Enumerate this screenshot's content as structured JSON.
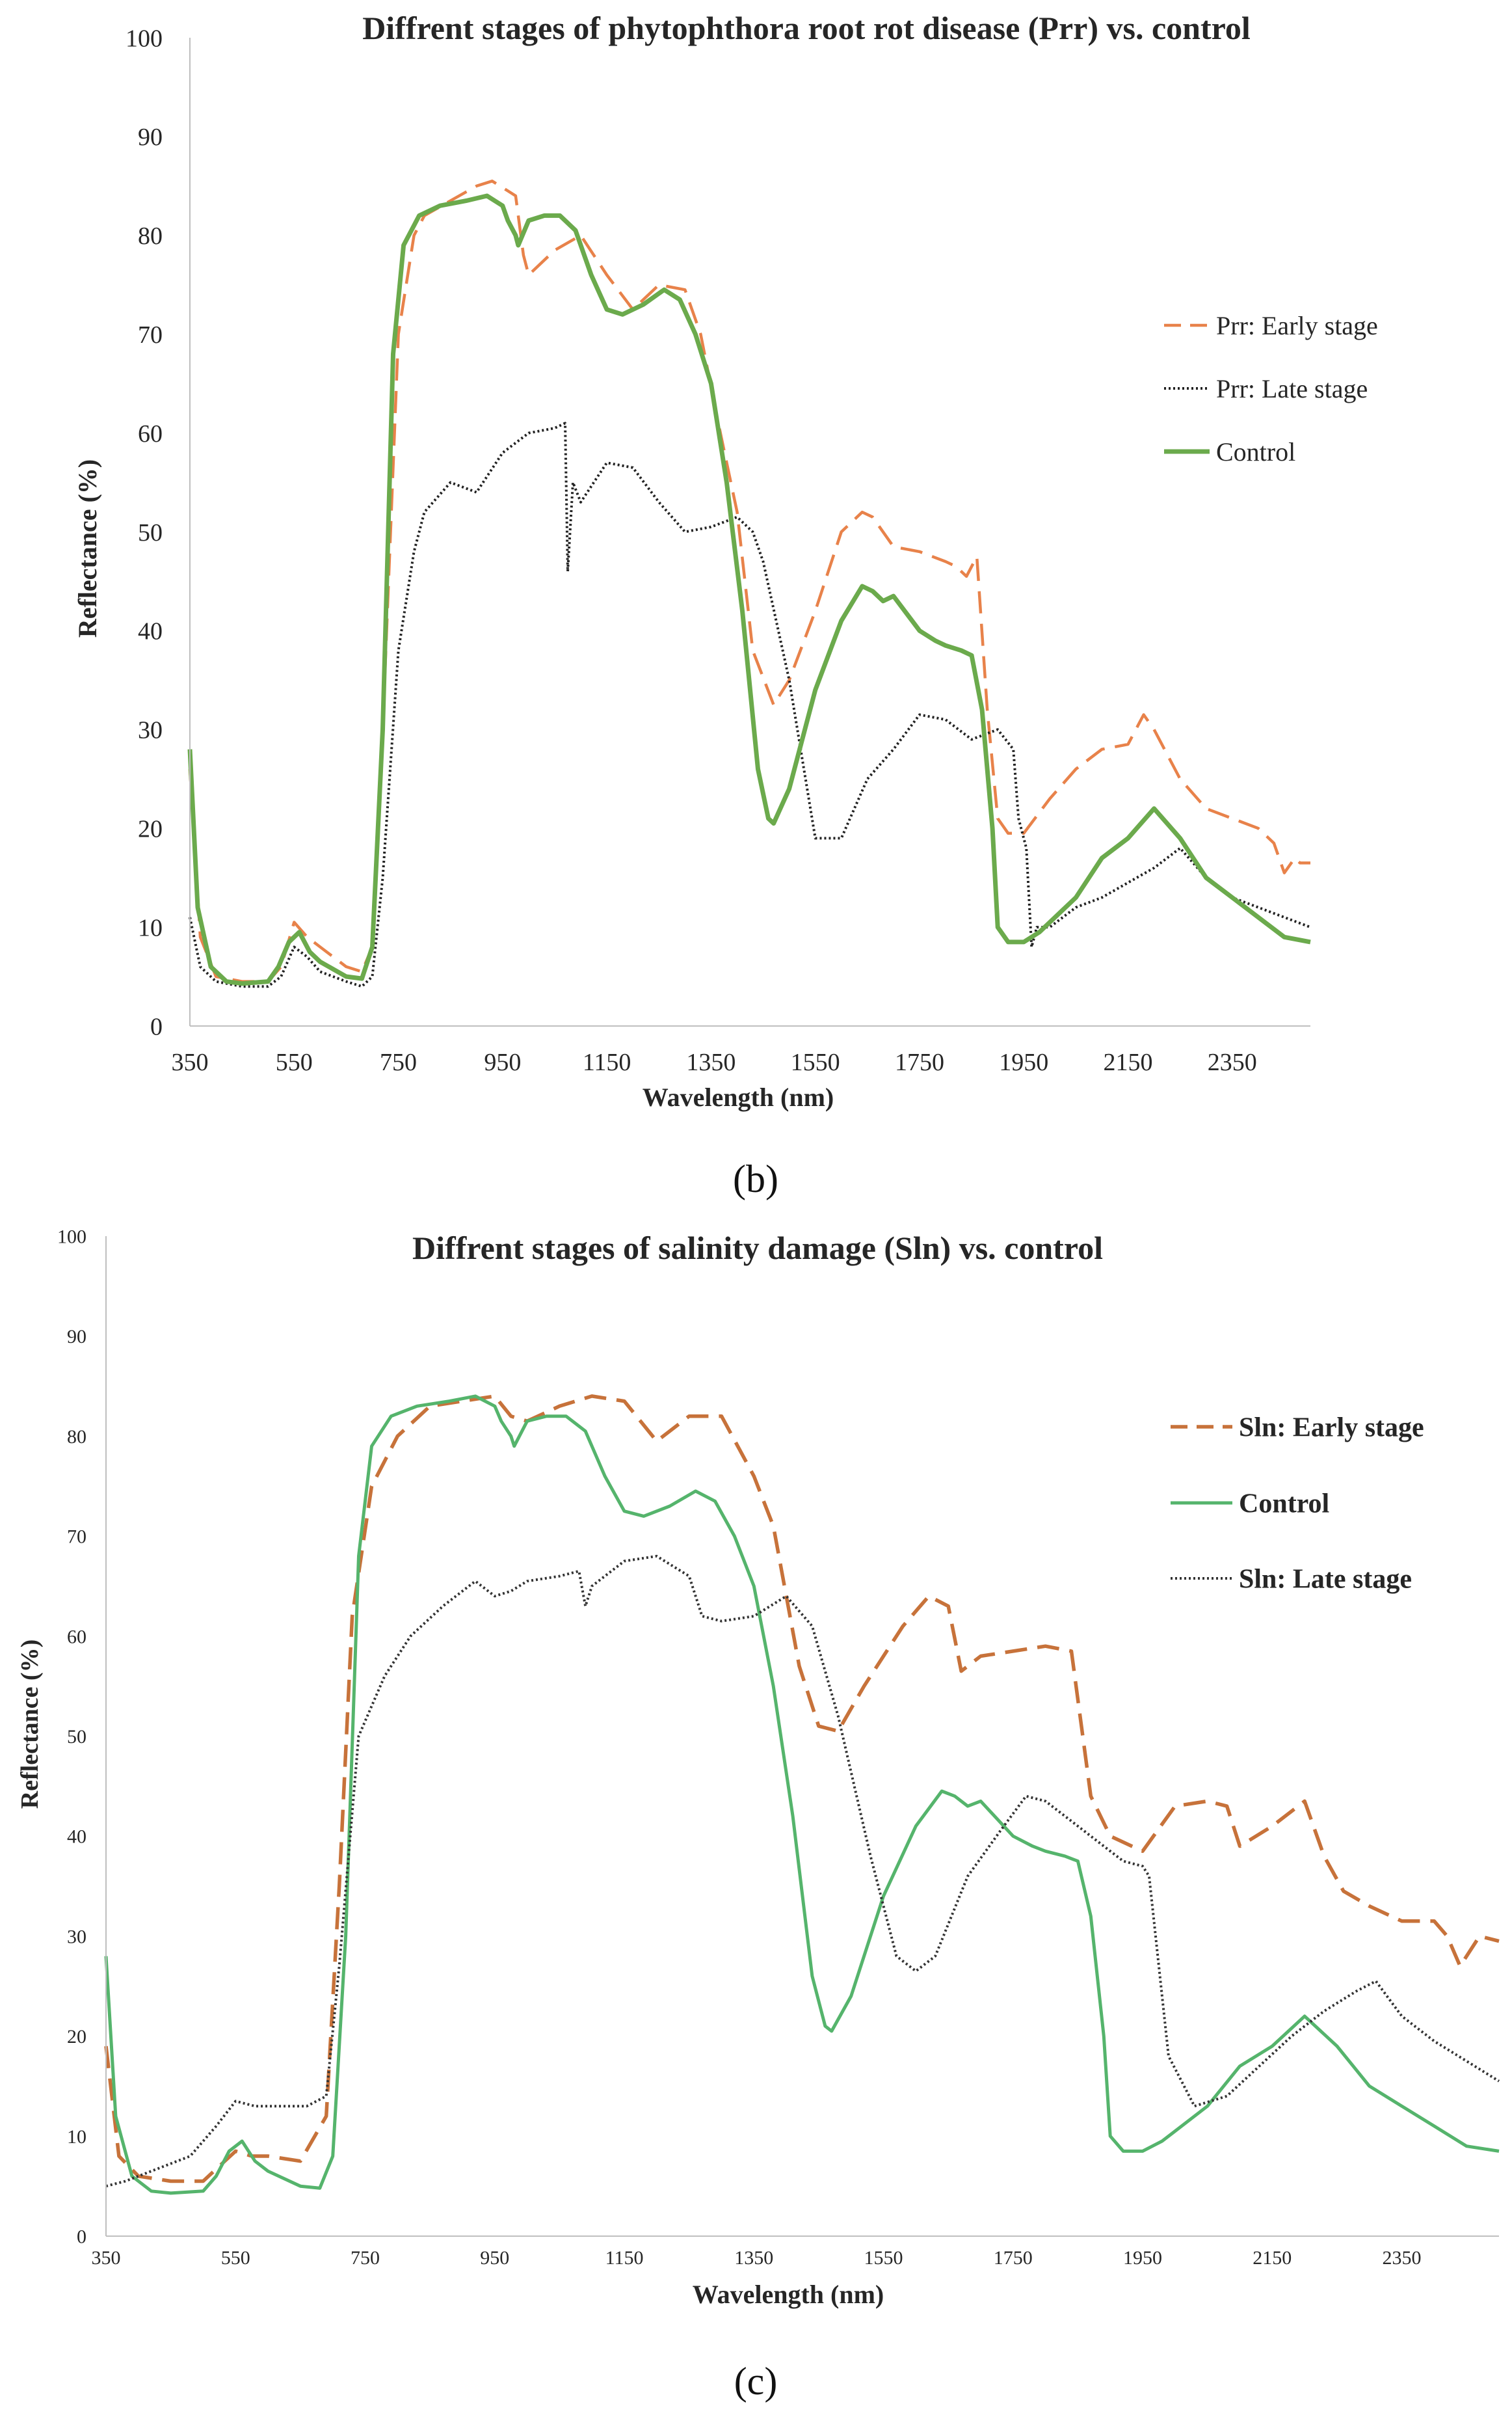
{
  "chart_data": [
    {
      "type": "line",
      "title": "Diffrent stages of phytophthora root rot disease (Prr) vs. control",
      "xlabel": "Wavelength  (nm)",
      "ylabel": "Reflectance (%)",
      "xlim": [
        350,
        2500
      ],
      "ylim": [
        0,
        100
      ],
      "xticks": [
        350,
        550,
        750,
        950,
        1150,
        1350,
        1550,
        1750,
        1950,
        2150,
        2350
      ],
      "yticks": [
        0,
        10,
        20,
        30,
        40,
        50,
        60,
        70,
        80,
        90,
        100
      ],
      "grid": false,
      "legend_position": "right",
      "panel_label": "(b)",
      "series": [
        {
          "name": "Prr: Early stage",
          "color": "#E8824A",
          "dash": "dashed",
          "x": [
            350,
            370,
            400,
            450,
            500,
            525,
            550,
            575,
            600,
            650,
            680,
            700,
            720,
            750,
            780,
            800,
            850,
            900,
            930,
            960,
            975,
            990,
            1000,
            1050,
            1100,
            1150,
            1200,
            1250,
            1300,
            1330,
            1360,
            1380,
            1400,
            1430,
            1470,
            1500,
            1550,
            1600,
            1640,
            1660,
            1700,
            1750,
            1800,
            1820,
            1840,
            1860,
            1880,
            1900,
            1920,
            1950,
            2000,
            2050,
            2100,
            2150,
            2180,
            2200,
            2250,
            2300,
            2350,
            2400,
            2430,
            2450,
            2470,
            2480,
            2500
          ],
          "y": [
            26,
            9,
            5,
            4.5,
            4.5,
            6,
            10.5,
            9,
            8,
            6,
            5.5,
            8,
            30,
            70,
            80,
            82,
            83.5,
            85,
            85.5,
            84.5,
            84,
            78,
            76,
            78.5,
            80,
            76,
            72.5,
            75,
            74.5,
            70,
            62,
            57,
            52,
            38,
            32.5,
            35,
            42,
            50,
            52,
            51.5,
            48.5,
            48,
            47,
            46.5,
            45.5,
            47.5,
            32,
            21,
            19.5,
            19.5,
            23,
            26,
            28,
            28.5,
            31.5,
            30,
            25,
            22,
            21,
            20,
            18.5,
            15.5,
            17,
            16.5,
            16.5
          ]
        },
        {
          "name": "Prr: Late stage",
          "color": "#222222",
          "dash": "dotted",
          "x": [
            350,
            370,
            400,
            450,
            500,
            525,
            550,
            575,
            600,
            650,
            680,
            700,
            720,
            750,
            780,
            800,
            850,
            900,
            950,
            1000,
            1050,
            1070,
            1075,
            1085,
            1100,
            1150,
            1200,
            1250,
            1300,
            1350,
            1400,
            1430,
            1450,
            1500,
            1550,
            1600,
            1650,
            1700,
            1750,
            1800,
            1850,
            1900,
            1930,
            1940,
            1955,
            1965,
            1975,
            2000,
            2050,
            2100,
            2150,
            2200,
            2250,
            2300,
            2350,
            2400,
            2450,
            2500
          ],
          "y": [
            11,
            6,
            4.5,
            4,
            4,
            5,
            8,
            7,
            5.5,
            4.5,
            4,
            5,
            15,
            38,
            48,
            52,
            55,
            54,
            58,
            60,
            60.5,
            61,
            46,
            55,
            53,
            57,
            56.5,
            53,
            50,
            50.5,
            51.5,
            50,
            47,
            35,
            19,
            19,
            25,
            28,
            31.5,
            31,
            29,
            30,
            28,
            21,
            18,
            8,
            10,
            10,
            12,
            13,
            14.5,
            16,
            18,
            15,
            13,
            12,
            11,
            10
          ]
        },
        {
          "name": "Control",
          "color": "#6BAA4C",
          "dash": "solid",
          "x": [
            350,
            365,
            390,
            420,
            450,
            500,
            520,
            540,
            560,
            580,
            600,
            650,
            680,
            700,
            720,
            740,
            760,
            790,
            830,
            880,
            920,
            950,
            960,
            975,
            980,
            1000,
            1030,
            1060,
            1090,
            1120,
            1150,
            1180,
            1220,
            1260,
            1290,
            1320,
            1350,
            1380,
            1410,
            1440,
            1460,
            1470,
            1500,
            1550,
            1600,
            1640,
            1660,
            1680,
            1700,
            1750,
            1780,
            1800,
            1830,
            1850,
            1870,
            1890,
            1900,
            1920,
            1950,
            1980,
            2000,
            2050,
            2100,
            2150,
            2200,
            2250,
            2300,
            2350,
            2400,
            2450,
            2500
          ],
          "y": [
            28,
            12,
            6,
            4.5,
            4.3,
            4.5,
            6,
            8.5,
            9.5,
            7.5,
            6.5,
            5,
            4.8,
            8,
            30,
            68,
            79,
            82,
            83,
            83.5,
            84,
            83,
            81.5,
            80,
            79,
            81.5,
            82,
            82,
            80.5,
            76,
            72.5,
            72,
            73,
            74.5,
            73.5,
            70,
            65,
            55,
            42,
            26,
            21,
            20.5,
            24,
            34,
            41,
            44.5,
            44,
            43,
            43.5,
            40,
            39,
            38.5,
            38,
            37.5,
            32,
            20,
            10,
            8.5,
            8.5,
            9.5,
            10.5,
            13,
            17,
            19,
            22,
            19,
            15,
            13,
            11,
            9,
            8.5
          ]
        }
      ]
    },
    {
      "type": "line",
      "title": "Diffrent stages of salinity damage (Sln) vs. control",
      "xlabel": "Wavelength  (nm)",
      "ylabel": "Reflectance (%)",
      "xlim": [
        350,
        2500
      ],
      "ylim": [
        0,
        100
      ],
      "xticks": [
        350,
        550,
        750,
        950,
        1150,
        1350,
        1550,
        1750,
        1950,
        2150,
        2350
      ],
      "yticks": [
        0,
        10,
        20,
        30,
        40,
        50,
        60,
        70,
        80,
        90,
        100
      ],
      "grid": false,
      "legend_position": "right",
      "panel_label": "(c)",
      "series": [
        {
          "name": "Sln: Early stage",
          "color": "#C7723A",
          "dash": "dashed",
          "x": [
            350,
            370,
            400,
            450,
            500,
            525,
            550,
            575,
            600,
            650,
            690,
            710,
            730,
            760,
            800,
            850,
            900,
            950,
            975,
            1000,
            1050,
            1100,
            1150,
            1200,
            1250,
            1300,
            1350,
            1380,
            1420,
            1450,
            1480,
            1520,
            1580,
            1620,
            1650,
            1670,
            1700,
            1750,
            1800,
            1840,
            1870,
            1900,
            1950,
            2000,
            2050,
            2080,
            2100,
            2150,
            2180,
            2200,
            2230,
            2260,
            2300,
            2350,
            2400,
            2420,
            2440,
            2470,
            2500
          ],
          "y": [
            19,
            8,
            6,
            5.5,
            5.5,
            7,
            8.5,
            8,
            8,
            7.5,
            12,
            35,
            62,
            75,
            80,
            83,
            83.5,
            84,
            82,
            81.5,
            83,
            84,
            83.5,
            79.5,
            82,
            82,
            76,
            71,
            57,
            51,
            50.5,
            55,
            61,
            64,
            63,
            56.5,
            58,
            58.5,
            59,
            58.5,
            44,
            40,
            38.5,
            43,
            43.5,
            43,
            39,
            41,
            42.5,
            43.5,
            38,
            34.5,
            33,
            31.5,
            31.5,
            30,
            27,
            30,
            29.5
          ]
        },
        {
          "name": "Control",
          "color": "#55B46C",
          "dash": "solid",
          "x": [
            350,
            365,
            390,
            420,
            450,
            500,
            520,
            540,
            560,
            580,
            600,
            650,
            680,
            700,
            720,
            740,
            760,
            790,
            830,
            880,
            920,
            950,
            960,
            975,
            980,
            1000,
            1030,
            1060,
            1090,
            1120,
            1150,
            1180,
            1220,
            1260,
            1290,
            1320,
            1350,
            1380,
            1410,
            1440,
            1460,
            1470,
            1500,
            1550,
            1600,
            1640,
            1660,
            1680,
            1700,
            1750,
            1780,
            1800,
            1830,
            1850,
            1870,
            1890,
            1900,
            1920,
            1950,
            1980,
            2000,
            2050,
            2100,
            2150,
            2200,
            2250,
            2300,
            2350,
            2400,
            2450,
            2500
          ],
          "y": [
            28,
            12,
            6,
            4.5,
            4.3,
            4.5,
            6,
            8.5,
            9.5,
            7.5,
            6.5,
            5,
            4.8,
            8,
            30,
            68,
            79,
            82,
            83,
            83.5,
            84,
            83,
            81.5,
            80,
            79,
            81.5,
            82,
            82,
            80.5,
            76,
            72.5,
            72,
            73,
            74.5,
            73.5,
            70,
            65,
            55,
            42,
            26,
            21,
            20.5,
            24,
            34,
            41,
            44.5,
            44,
            43,
            43.5,
            40,
            39,
            38.5,
            38,
            37.5,
            32,
            20,
            10,
            8.5,
            8.5,
            9.5,
            10.5,
            13,
            17,
            19,
            22,
            19,
            15,
            13,
            11,
            9,
            8.5
          ]
        },
        {
          "name": "Sln: Late stage",
          "color": "#333333",
          "dash": "dotted",
          "x": [
            350,
            380,
            420,
            480,
            520,
            550,
            580,
            620,
            660,
            690,
            710,
            740,
            780,
            820,
            870,
            920,
            950,
            975,
            1000,
            1050,
            1080,
            1090,
            1100,
            1150,
            1200,
            1250,
            1270,
            1300,
            1350,
            1400,
            1440,
            1480,
            1530,
            1570,
            1600,
            1630,
            1680,
            1730,
            1770,
            1800,
            1840,
            1880,
            1920,
            1950,
            1960,
            1990,
            2030,
            2080,
            2130,
            2180,
            2230,
            2280,
            2310,
            2350,
            2400,
            2450,
            2500
          ],
          "y": [
            5,
            5.5,
            6.5,
            8,
            11,
            13.5,
            13,
            13,
            13,
            14,
            27,
            50,
            56,
            60,
            63,
            65.5,
            64,
            64.5,
            65.5,
            66,
            66.5,
            63,
            65,
            67.5,
            68,
            66,
            62,
            61.5,
            62,
            64,
            61,
            52,
            38,
            28,
            26.5,
            28,
            36,
            40.5,
            44,
            43.5,
            41.5,
            39.5,
            37.5,
            37,
            36,
            18,
            13,
            14,
            17,
            20,
            22.5,
            24.5,
            25.5,
            22,
            19.5,
            17.5,
            15.5
          ]
        }
      ]
    }
  ]
}
